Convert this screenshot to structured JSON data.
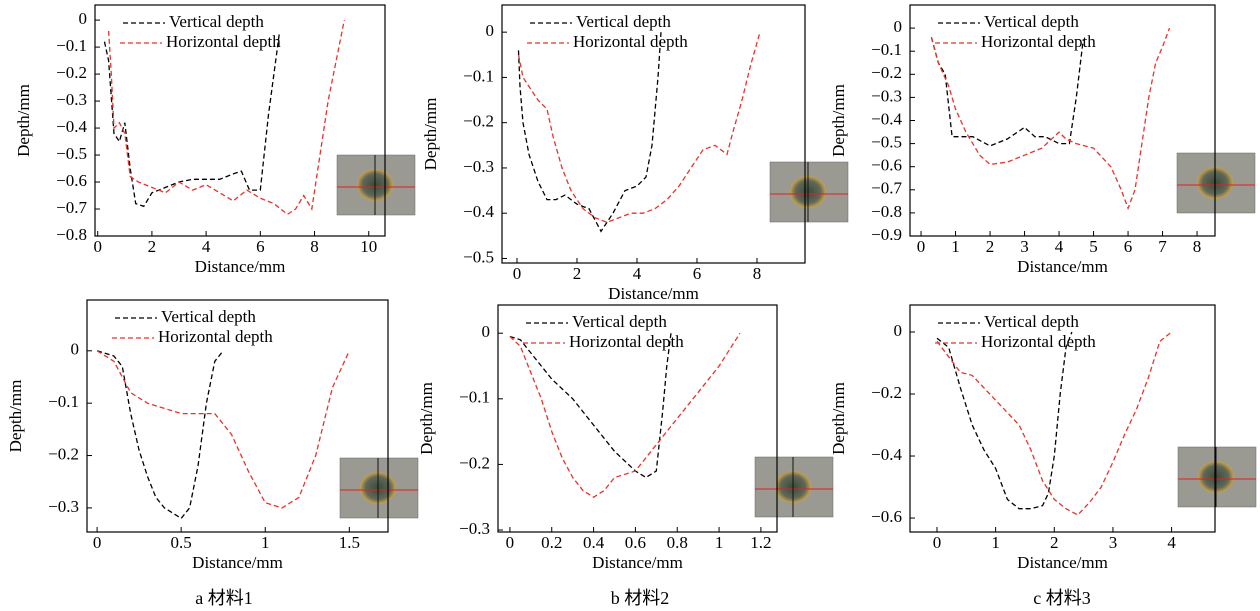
{
  "chart_data": [
    {
      "type": "line",
      "xlabel": "Distance/mm",
      "ylabel": "Depth/mm",
      "xlim": [
        -0.1,
        10.6
      ],
      "ylim": [
        -0.8,
        0.056
      ],
      "xticks": [
        0,
        2,
        4,
        6,
        8,
        10
      ],
      "yticks": [
        0,
        {
          "value": -0.1,
          "label": "−0.1"
        },
        {
          "value": -0.2,
          "label": "−0.2"
        },
        {
          "value": -0.3,
          "label": "−0.3"
        },
        {
          "value": -0.4,
          "label": "−0.4"
        },
        {
          "value": -0.5,
          "label": "−0.5"
        },
        {
          "value": -0.6,
          "label": "−0.6"
        },
        {
          "value": -0.7,
          "label": "−0.7"
        },
        {
          "value": -0.8,
          "label": "−0.8"
        }
      ],
      "series": [
        {
          "name": "Vertical depth",
          "color": "#000000",
          "x": [
            0.25,
            0.4,
            0.6,
            0.8,
            1.0,
            1.2,
            1.4,
            1.7,
            2.0,
            2.5,
            3.0,
            3.5,
            4.0,
            4.5,
            5.0,
            5.3,
            5.6,
            6.0,
            6.3,
            6.5,
            6.7
          ],
          "values": [
            -0.08,
            -0.15,
            -0.42,
            -0.45,
            -0.38,
            -0.55,
            -0.68,
            -0.69,
            -0.64,
            -0.62,
            -0.6,
            -0.59,
            -0.59,
            -0.59,
            -0.57,
            -0.56,
            -0.63,
            -0.63,
            -0.35,
            -0.2,
            -0.05
          ]
        },
        {
          "name": "Horizontal depth",
          "color": "#e8332a",
          "x": [
            0.4,
            0.5,
            0.6,
            0.8,
            1.0,
            1.2,
            1.5,
            2.0,
            2.5,
            3.0,
            3.5,
            4.0,
            4.5,
            5.0,
            5.5,
            6.0,
            6.5,
            7.0,
            7.3,
            7.6,
            7.9,
            8.2,
            8.5,
            8.8,
            9.1
          ],
          "values": [
            -0.04,
            -0.2,
            -0.4,
            -0.38,
            -0.42,
            -0.58,
            -0.6,
            -0.62,
            -0.64,
            -0.6,
            -0.63,
            -0.61,
            -0.64,
            -0.67,
            -0.63,
            -0.66,
            -0.68,
            -0.72,
            -0.7,
            -0.65,
            -0.7,
            -0.5,
            -0.3,
            -0.15,
            0
          ]
        }
      ]
    },
    {
      "type": "line",
      "xlabel": "Distance/mm",
      "ylabel": "Depth/mm",
      "xlim": [
        -0.5,
        9.6
      ],
      "ylim": [
        -0.51,
        0.06
      ],
      "xticks": [
        0,
        2,
        4,
        6,
        8
      ],
      "yticks": [
        0,
        {
          "value": -0.1,
          "label": "−0.1"
        },
        {
          "value": -0.2,
          "label": "−0.2"
        },
        {
          "value": -0.3,
          "label": "−0.3"
        },
        {
          "value": -0.4,
          "label": "−0.4"
        },
        {
          "value": -0.5,
          "label": "−0.5"
        }
      ],
      "series": [
        {
          "name": "Vertical depth",
          "color": "#000000",
          "x": [
            0.05,
            0.1,
            0.2,
            0.4,
            0.7,
            1.0,
            1.3,
            1.6,
            2.0,
            2.4,
            2.8,
            3.2,
            3.6,
            4.0,
            4.3,
            4.5,
            4.7,
            4.8
          ],
          "values": [
            -0.04,
            -0.12,
            -0.2,
            -0.27,
            -0.33,
            -0.37,
            -0.37,
            -0.36,
            -0.38,
            -0.39,
            -0.44,
            -0.4,
            -0.35,
            -0.34,
            -0.32,
            -0.25,
            -0.1,
            0
          ]
        },
        {
          "name": "Horizontal depth",
          "color": "#e8332a",
          "x": [
            0.05,
            0.2,
            0.4,
            0.7,
            1.0,
            1.2,
            1.5,
            1.8,
            2.2,
            2.6,
            3.0,
            3.4,
            3.8,
            4.2,
            4.6,
            5.0,
            5.4,
            5.8,
            6.2,
            6.6,
            7.0,
            7.2,
            7.5,
            7.8,
            8.1
          ],
          "values": [
            -0.05,
            -0.1,
            -0.12,
            -0.15,
            -0.17,
            -0.23,
            -0.3,
            -0.35,
            -0.39,
            -0.41,
            -0.42,
            -0.41,
            -0.4,
            -0.4,
            -0.39,
            -0.37,
            -0.34,
            -0.3,
            -0.26,
            -0.25,
            -0.27,
            -0.22,
            -0.15,
            -0.07,
            0
          ]
        }
      ]
    },
    {
      "type": "line",
      "xlabel": "Distance/mm",
      "ylabel": "Depth/mm",
      "xlim": [
        -0.32,
        8.52
      ],
      "ylim": [
        -0.9,
        0.1
      ],
      "xticks": [
        0,
        1,
        2,
        3,
        4,
        5,
        6,
        7,
        8
      ],
      "yticks": [
        0,
        {
          "value": -0.1,
          "label": "−0.1"
        },
        {
          "value": -0.2,
          "label": "−0.2"
        },
        {
          "value": -0.3,
          "label": "−0.3"
        },
        {
          "value": -0.4,
          "label": "−0.4"
        },
        {
          "value": -0.5,
          "label": "−0.5"
        },
        {
          "value": -0.6,
          "label": "−0.6"
        },
        {
          "value": -0.7,
          "label": "−0.7"
        },
        {
          "value": -0.8,
          "label": "−0.8"
        },
        {
          "value": -0.9,
          "label": "−0.9"
        }
      ],
      "series": [
        {
          "name": "Vertical depth",
          "color": "#000000",
          "x": [
            0.3,
            0.5,
            0.7,
            0.9,
            1.2,
            1.5,
            2.0,
            2.5,
            3.0,
            3.3,
            3.6,
            4.0,
            4.3,
            4.5,
            4.7
          ],
          "values": [
            -0.04,
            -0.15,
            -0.2,
            -0.47,
            -0.47,
            -0.47,
            -0.51,
            -0.48,
            -0.43,
            -0.47,
            -0.47,
            -0.5,
            -0.5,
            -0.3,
            -0.05
          ]
        },
        {
          "name": "Horizontal depth",
          "color": "#e8332a",
          "x": [
            0.3,
            0.5,
            0.8,
            1.0,
            1.3,
            1.7,
            2.0,
            2.5,
            3.0,
            3.5,
            4.0,
            4.2,
            4.5,
            5.0,
            5.5,
            5.8,
            6.0,
            6.2,
            6.4,
            6.6,
            6.8,
            7.0,
            7.2
          ],
          "values": [
            -0.04,
            -0.15,
            -0.25,
            -0.35,
            -0.45,
            -0.55,
            -0.59,
            -0.58,
            -0.55,
            -0.52,
            -0.45,
            -0.48,
            -0.5,
            -0.52,
            -0.6,
            -0.7,
            -0.78,
            -0.7,
            -0.5,
            -0.3,
            -0.15,
            -0.08,
            0
          ]
        }
      ]
    },
    {
      "type": "line",
      "xlabel": "Distance/mm",
      "ylabel": "Depth/mm",
      "xlim": [
        -0.06,
        1.73
      ],
      "ylim": [
        -0.346,
        0.097
      ],
      "xticks": [
        0,
        0.5,
        1.0,
        1.5
      ],
      "yticks": [
        0,
        {
          "value": -0.1,
          "label": "−0.1"
        },
        {
          "value": -0.2,
          "label": "−0.2"
        },
        {
          "value": -0.3,
          "label": "−0.3"
        }
      ],
      "series": [
        {
          "name": "Vertical depth",
          "color": "#000000",
          "x": [
            0,
            0.05,
            0.1,
            0.15,
            0.2,
            0.25,
            0.3,
            0.35,
            0.4,
            0.45,
            0.5,
            0.55,
            0.6,
            0.65,
            0.7,
            0.75
          ],
          "values": [
            0,
            -0.005,
            -0.01,
            -0.03,
            -0.12,
            -0.19,
            -0.24,
            -0.28,
            -0.3,
            -0.31,
            -0.32,
            -0.3,
            -0.22,
            -0.1,
            -0.02,
            0
          ]
        },
        {
          "name": "Horizontal depth",
          "color": "#e8332a",
          "x": [
            0,
            0.1,
            0.2,
            0.3,
            0.4,
            0.5,
            0.6,
            0.7,
            0.8,
            0.9,
            1.0,
            1.1,
            1.2,
            1.3,
            1.4,
            1.5
          ],
          "values": [
            0,
            -0.02,
            -0.08,
            -0.1,
            -0.11,
            -0.12,
            -0.12,
            -0.12,
            -0.16,
            -0.23,
            -0.29,
            -0.3,
            -0.28,
            -0.2,
            -0.07,
            0
          ]
        }
      ]
    },
    {
      "type": "line",
      "xlabel": "Distance/mm",
      "ylabel": "Depth/mm",
      "xlim": [
        -0.057,
        1.277
      ],
      "ylim": [
        -0.303,
        0.043
      ],
      "xticks": [
        0,
        0.2,
        0.4,
        0.6,
        0.8,
        1.0,
        1.2
      ],
      "yticks": [
        0,
        {
          "value": -0.1,
          "label": "−0.1"
        },
        {
          "value": -0.2,
          "label": "−0.2"
        },
        {
          "value": -0.3,
          "label": "−0.3"
        }
      ],
      "series": [
        {
          "name": "Vertical depth",
          "color": "#000000",
          "x": [
            0,
            0.05,
            0.1,
            0.2,
            0.3,
            0.4,
            0.5,
            0.6,
            0.65,
            0.7,
            0.73,
            0.75,
            0.77
          ],
          "values": [
            -0.005,
            -0.01,
            -0.03,
            -0.07,
            -0.1,
            -0.14,
            -0.18,
            -0.21,
            -0.22,
            -0.21,
            -0.12,
            -0.05,
            0
          ]
        },
        {
          "name": "Horizontal depth",
          "color": "#e8332a",
          "x": [
            0,
            0.05,
            0.1,
            0.15,
            0.2,
            0.25,
            0.3,
            0.35,
            0.4,
            0.45,
            0.5,
            0.6,
            0.7,
            0.8,
            0.9,
            1.0,
            1.1
          ],
          "values": [
            -0.005,
            -0.02,
            -0.06,
            -0.1,
            -0.15,
            -0.19,
            -0.22,
            -0.24,
            -0.25,
            -0.24,
            -0.22,
            -0.21,
            -0.17,
            -0.13,
            -0.09,
            -0.05,
            0
          ]
        }
      ]
    },
    {
      "type": "line",
      "xlabel": "Distance/mm",
      "ylabel": "Depth/mm",
      "xlim": [
        -0.46,
        4.74
      ],
      "ylim": [
        -0.645,
        0.087
      ],
      "xticks": [
        0,
        1,
        2,
        3,
        4
      ],
      "yticks": [
        0,
        {
          "value": -0.2,
          "label": "−0.2"
        },
        {
          "value": -0.4,
          "label": "−0.4"
        },
        {
          "value": -0.6,
          "label": "−0.6"
        }
      ],
      "series": [
        {
          "name": "Vertical depth",
          "color": "#000000",
          "x": [
            0,
            0.2,
            0.4,
            0.6,
            0.8,
            1.0,
            1.2,
            1.4,
            1.6,
            1.8,
            1.9,
            2.0,
            2.1,
            2.2,
            2.3
          ],
          "values": [
            -0.02,
            -0.05,
            -0.18,
            -0.3,
            -0.38,
            -0.44,
            -0.54,
            -0.57,
            -0.57,
            -0.56,
            -0.52,
            -0.4,
            -0.2,
            -0.05,
            0
          ]
        },
        {
          "name": "Horizontal depth",
          "color": "#e8332a",
          "x": [
            0,
            0.2,
            0.4,
            0.6,
            0.8,
            1.0,
            1.2,
            1.4,
            1.6,
            1.8,
            2.0,
            2.2,
            2.4,
            2.6,
            2.8,
            3.0,
            3.2,
            3.4,
            3.6,
            3.8,
            4.0
          ],
          "values": [
            -0.03,
            -0.08,
            -0.13,
            -0.14,
            -0.18,
            -0.22,
            -0.26,
            -0.3,
            -0.38,
            -0.48,
            -0.54,
            -0.57,
            -0.59,
            -0.55,
            -0.5,
            -0.42,
            -0.33,
            -0.25,
            -0.15,
            -0.03,
            0
          ]
        }
      ]
    }
  ],
  "captions": [
    "a  材料1",
    "b  材料2",
    "c  材料3"
  ]
}
